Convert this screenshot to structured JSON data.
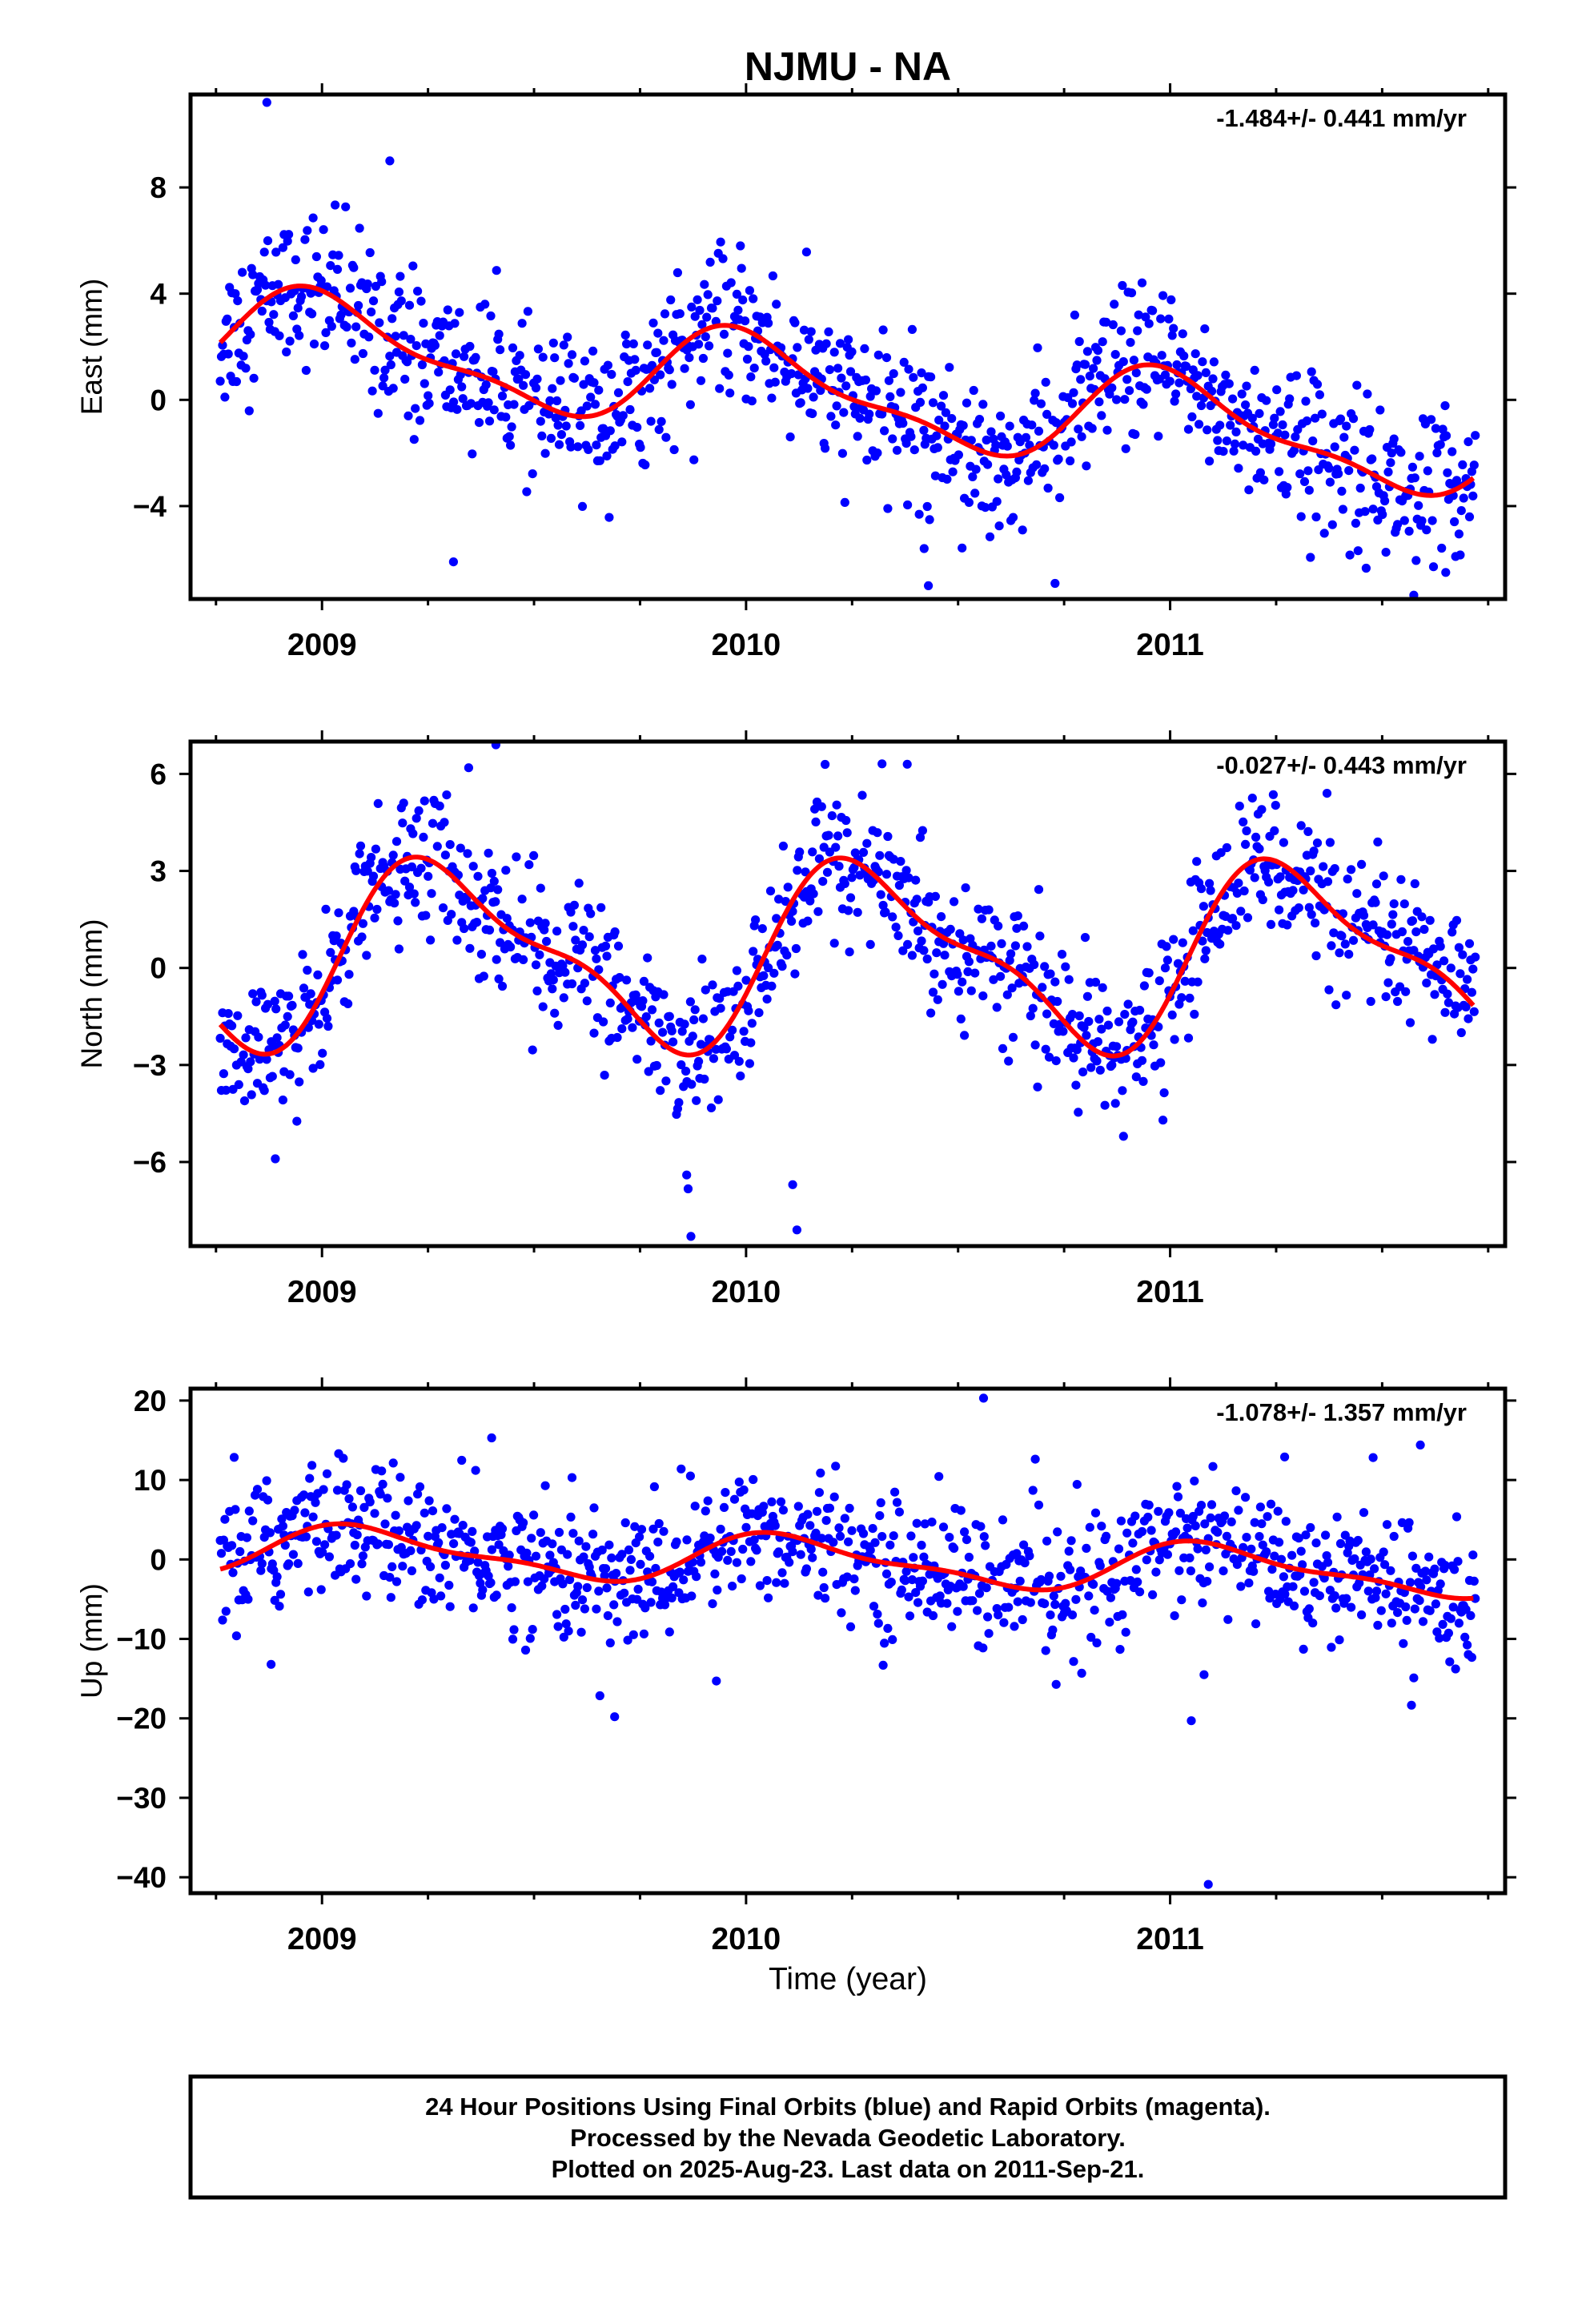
{
  "chart_data": {
    "type": "scatter",
    "title": "NJMU - NA",
    "xlabel": "Time (year)",
    "xlim": [
      2008.69,
      2011.79
    ],
    "x_ticks": [
      2009,
      2010,
      2011
    ],
    "x_tick_labels": [
      "2009",
      "2010",
      "2011"
    ],
    "point_color": "#0000ff",
    "curve_color": "#ff0000",
    "panels": [
      {
        "name": "east",
        "ylabel": "East (mm)",
        "ylim": [
          -7.5,
          11.5
        ],
        "y_ticks": [
          8,
          4,
          0,
          -4
        ],
        "y_tick_labels": [
          "8",
          "4",
          "0",
          "−4"
        ],
        "rate_label": "-1.484+/- 0.441 mm/yr",
        "trend": {
          "amp": 1.7,
          "phase": 1.5,
          "slope": -1.484,
          "mean": 0.3,
          "t0": 2010.2
        },
        "noise": 1.4,
        "outliers": [
          {
            "x": 2008.87,
            "y": 11.2
          },
          {
            "x": 2009.16,
            "y": 9.0
          },
          {
            "x": 2009.31,
            "y": -6.1
          },
          {
            "x": 2010.43,
            "y": -7.0
          },
          {
            "x": 2010.42,
            "y": -5.6
          },
          {
            "x": 2011.65,
            "y": -6.5
          }
        ]
      },
      {
        "name": "north",
        "ylabel": "North (mm)",
        "ylim": [
          -8.6,
          7.0
        ],
        "y_ticks": [
          6,
          3,
          0,
          -3,
          -6
        ],
        "y_tick_labels": [
          "6",
          "3",
          "0",
          "−3",
          "−6"
        ],
        "rate_label": "-0.027+/- 0.443 mm/yr",
        "trend": {
          "amp": 2.6,
          "phase": -0.3,
          "slope": -0.027,
          "mean": 0.4,
          "t0": 2010.2
        },
        "noise": 1.1,
        "outliers": [
          {
            "x": 2008.89,
            "y": -5.9
          },
          {
            "x": 2009.41,
            "y": 6.9
          },
          {
            "x": 2009.87,
            "y": -8.3
          },
          {
            "x": 2010.12,
            "y": -8.1
          },
          {
            "x": 2010.11,
            "y": -6.7
          },
          {
            "x": 2010.38,
            "y": 6.3
          },
          {
            "x": 2009.86,
            "y": -6.4
          },
          {
            "x": 2011.37,
            "y": 5.4
          }
        ]
      },
      {
        "name": "up",
        "ylabel": "Up (mm)",
        "ylim": [
          -42,
          21.5
        ],
        "y_ticks": [
          20,
          10,
          0,
          -10,
          -20,
          -30,
          -40
        ],
        "y_tick_labels": [
          "20",
          "10",
          "0",
          "−10",
          "−20",
          "−30",
          "−40"
        ],
        "rate_label": "-1.078+/- 1.357 mm/yr",
        "trend": {
          "amp": 2.8,
          "phase": 0.9,
          "slope": -1.078,
          "mean": -0.2,
          "t0": 2010.2
        },
        "noise": 4.3,
        "outliers": [
          {
            "x": 2008.88,
            "y": -13.2
          },
          {
            "x": 2009.69,
            "y": -19.8
          },
          {
            "x": 2009.93,
            "y": -15.3
          },
          {
            "x": 2010.56,
            "y": 20.3
          },
          {
            "x": 2011.05,
            "y": -20.3
          },
          {
            "x": 2011.09,
            "y": -40.9
          },
          {
            "x": 2011.08,
            "y": -14.5
          },
          {
            "x": 2011.27,
            "y": 12.9
          },
          {
            "x": 2011.59,
            "y": 14.4
          },
          {
            "x": 2009.4,
            "y": 15.3
          }
        ]
      }
    ],
    "footer": [
      "24 Hour Positions Using Final Orbits (blue) and Rapid Orbits (magenta).",
      "Processed by the Nevada Geodetic Laboratory.",
      "Plotted on 2025-Aug-23. Last data on 2011-Sep-21."
    ]
  }
}
